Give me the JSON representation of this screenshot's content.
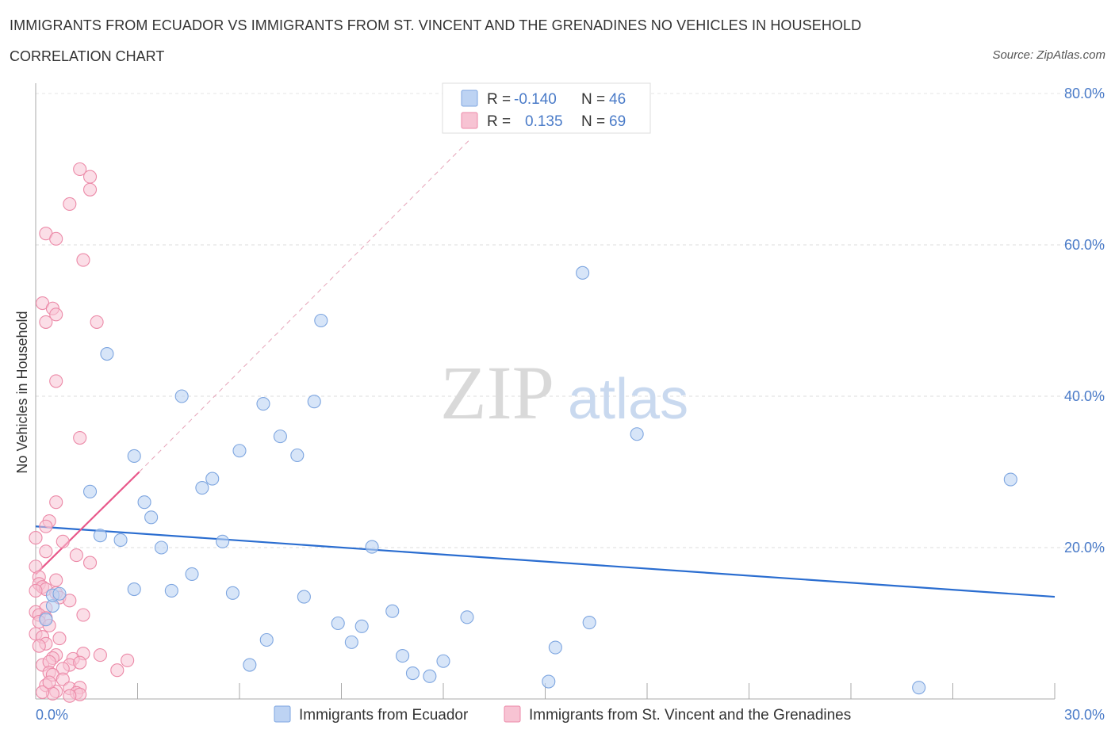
{
  "header": {
    "title": "IMMIGRANTS FROM ECUADOR VS IMMIGRANTS FROM ST. VINCENT AND THE GRENADINES NO VEHICLES IN HOUSEHOLD",
    "subtitle": "CORRELATION CHART",
    "source": "Source: ZipAtlas.com"
  },
  "watermark": {
    "zip": "ZIP",
    "atlas": "atlas"
  },
  "legend": {
    "r_label": "R =",
    "n_label": "N =",
    "series": [
      {
        "r": "-0.140",
        "n": "46"
      },
      {
        "r": "0.135",
        "n": "69"
      }
    ]
  },
  "colors": {
    "blue_fill": "#bdd3f3",
    "blue_stroke": "#7ea6e0",
    "blue_line": "#2a6dd0",
    "pink_fill": "#f7c3d3",
    "pink_stroke": "#ec8aa8",
    "pink_line": "#e8578a"
  },
  "chart_data": {
    "type": "scatter",
    "title": "IMMIGRANTS FROM ECUADOR VS IMMIGRANTS FROM ST. VINCENT AND THE GRENADINES NO VEHICLES IN HOUSEHOLD",
    "xlabel": "",
    "ylabel": "No Vehicles in Household",
    "xlim": [
      0,
      30
    ],
    "ylim": [
      0,
      80
    ],
    "x_tick_labels": [
      "0.0%",
      "30.0%"
    ],
    "y_ticks": [
      20,
      40,
      60,
      80
    ],
    "y_tick_labels": [
      "20.0%",
      "40.0%",
      "60.0%",
      "80.0%"
    ],
    "series": [
      {
        "name": "Immigrants from Ecuador",
        "r": -0.14,
        "n": 46,
        "trend": {
          "x": [
            0,
            30
          ],
          "y": [
            22.8,
            13.5
          ],
          "style": "solid"
        },
        "points": [
          [
            2.1,
            45.6
          ],
          [
            1.6,
            27.4
          ],
          [
            2.9,
            14.5
          ],
          [
            0.5,
            12.3
          ],
          [
            0.5,
            13.7
          ],
          [
            1.9,
            21.6
          ],
          [
            2.5,
            21.0
          ],
          [
            2.9,
            32.1
          ],
          [
            3.2,
            26.0
          ],
          [
            3.4,
            24.0
          ],
          [
            3.7,
            20.0
          ],
          [
            4.0,
            14.3
          ],
          [
            4.3,
            40.0
          ],
          [
            4.6,
            16.5
          ],
          [
            4.9,
            27.9
          ],
          [
            5.2,
            29.1
          ],
          [
            5.5,
            20.8
          ],
          [
            5.8,
            14.0
          ],
          [
            6.0,
            32.8
          ],
          [
            6.3,
            4.5
          ],
          [
            6.7,
            39.0
          ],
          [
            6.8,
            7.8
          ],
          [
            7.2,
            34.7
          ],
          [
            7.7,
            32.2
          ],
          [
            7.9,
            13.5
          ],
          [
            8.2,
            39.3
          ],
          [
            8.4,
            50.0
          ],
          [
            8.9,
            10.0
          ],
          [
            9.3,
            7.5
          ],
          [
            9.6,
            9.6
          ],
          [
            9.9,
            20.1
          ],
          [
            10.5,
            11.6
          ],
          [
            10.8,
            5.7
          ],
          [
            11.1,
            3.4
          ],
          [
            11.6,
            3.0
          ],
          [
            12.0,
            5.0
          ],
          [
            12.7,
            10.8
          ],
          [
            15.1,
            2.3
          ],
          [
            15.3,
            6.8
          ],
          [
            16.1,
            56.3
          ],
          [
            16.3,
            10.1
          ],
          [
            17.7,
            35.0
          ],
          [
            26.0,
            1.5
          ],
          [
            28.7,
            29.0
          ],
          [
            0.3,
            10.5
          ],
          [
            0.7,
            13.9
          ]
        ]
      },
      {
        "name": "Immigrants from St. Vincent and the Grenadines",
        "r": 0.135,
        "n": 69,
        "trend": {
          "x": [
            0,
            3.05
          ],
          "y": [
            16.5,
            30.0
          ],
          "style": "solid",
          "dashed_extension_to": [
            12.8,
            74.0
          ]
        },
        "points": [
          [
            1.3,
            70.0
          ],
          [
            1.6,
            69.0
          ],
          [
            1.6,
            67.3
          ],
          [
            1.0,
            65.4
          ],
          [
            0.3,
            61.5
          ],
          [
            0.6,
            60.8
          ],
          [
            1.4,
            58.0
          ],
          [
            0.2,
            52.3
          ],
          [
            0.5,
            51.6
          ],
          [
            0.6,
            50.8
          ],
          [
            0.3,
            49.8
          ],
          [
            1.8,
            49.8
          ],
          [
            0.6,
            42.0
          ],
          [
            1.3,
            34.5
          ],
          [
            0.6,
            26.0
          ],
          [
            0.4,
            23.5
          ],
          [
            0.3,
            22.8
          ],
          [
            0.0,
            21.3
          ],
          [
            0.8,
            20.8
          ],
          [
            0.3,
            19.5
          ],
          [
            1.2,
            19.0
          ],
          [
            1.6,
            18.0
          ],
          [
            0.0,
            17.5
          ],
          [
            0.1,
            16.1
          ],
          [
            0.6,
            15.7
          ],
          [
            0.1,
            15.2
          ],
          [
            0.2,
            14.8
          ],
          [
            0.3,
            14.5
          ],
          [
            0.0,
            14.3
          ],
          [
            0.6,
            14.0
          ],
          [
            0.7,
            13.4
          ],
          [
            1.0,
            13.0
          ],
          [
            0.3,
            12.0
          ],
          [
            0.0,
            11.5
          ],
          [
            0.1,
            11.1
          ],
          [
            1.4,
            11.1
          ],
          [
            0.3,
            10.7
          ],
          [
            0.1,
            10.2
          ],
          [
            0.4,
            9.7
          ],
          [
            0.0,
            8.6
          ],
          [
            0.2,
            8.2
          ],
          [
            0.7,
            8.0
          ],
          [
            0.3,
            7.3
          ],
          [
            0.1,
            7.0
          ],
          [
            0.6,
            5.8
          ],
          [
            1.4,
            6.0
          ],
          [
            0.5,
            5.4
          ],
          [
            1.9,
            5.8
          ],
          [
            1.1,
            5.3
          ],
          [
            2.7,
            5.1
          ],
          [
            0.2,
            4.5
          ],
          [
            0.4,
            4.9
          ],
          [
            1.0,
            4.5
          ],
          [
            1.3,
            4.8
          ],
          [
            0.8,
            4.0
          ],
          [
            2.4,
            3.8
          ],
          [
            0.4,
            3.5
          ],
          [
            0.5,
            3.2
          ],
          [
            0.8,
            2.6
          ],
          [
            0.3,
            1.8
          ],
          [
            1.0,
            1.4
          ],
          [
            1.3,
            1.5
          ],
          [
            0.6,
            1.0
          ],
          [
            1.2,
            0.8
          ],
          [
            1.3,
            0.6
          ],
          [
            0.5,
            0.7
          ],
          [
            0.2,
            0.9
          ],
          [
            1.0,
            0.4
          ],
          [
            0.4,
            2.2
          ]
        ]
      }
    ]
  }
}
